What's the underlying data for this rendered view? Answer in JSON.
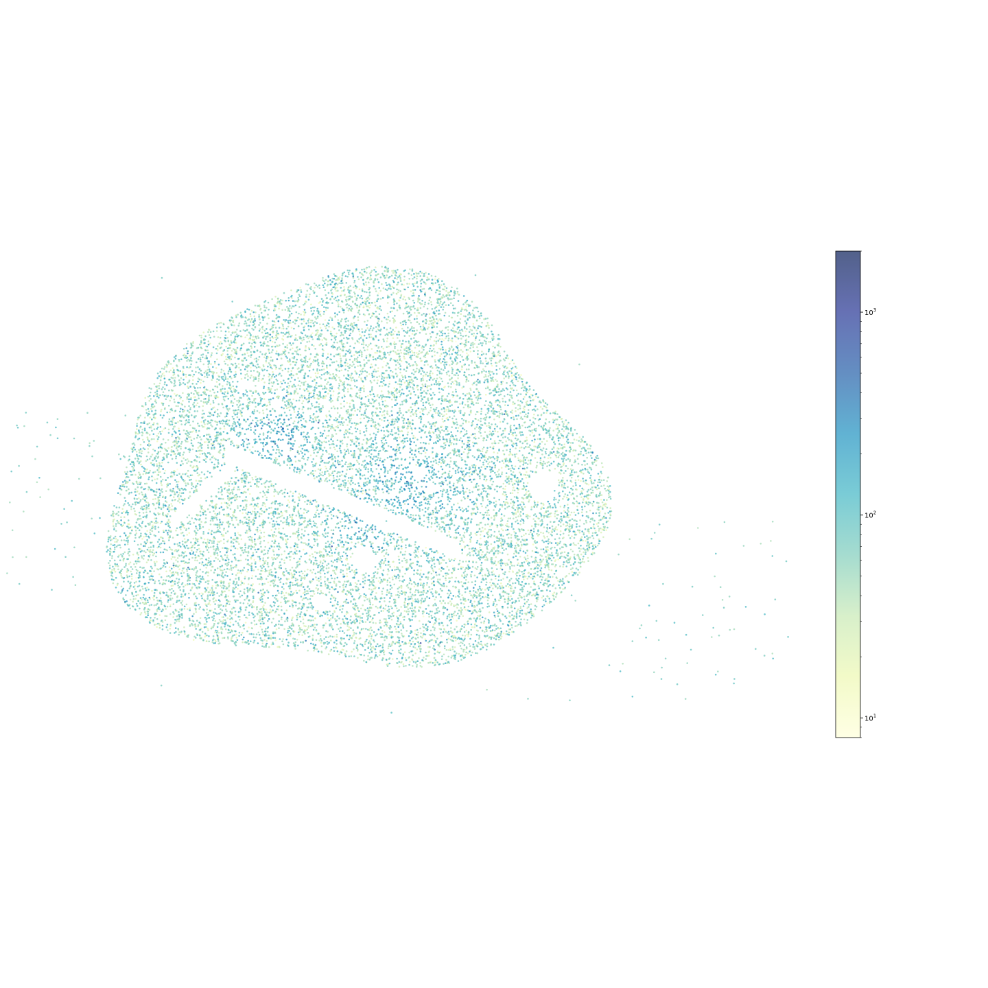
{
  "chart_data": {
    "type": "scatter",
    "title": "",
    "xlabel": "",
    "ylabel": "",
    "axes_visible": false,
    "grid": false,
    "legend": "none",
    "marker": "dot",
    "point_alpha": 0.7,
    "approx_point_count": 20000,
    "color_scale": {
      "colormap": "YlGnBu",
      "scale": "log",
      "range": [
        8,
        2000
      ],
      "stops": [
        "#ffffd9",
        "#edf8b1",
        "#c7e9b4",
        "#7fcdbb",
        "#41b6c4",
        "#1d91c0",
        "#225ea8",
        "#253494",
        "#081d58"
      ]
    },
    "colorbar": {
      "position": "right",
      "ticks": [
        {
          "base": "10",
          "exp": "1",
          "value": 10
        },
        {
          "base": "10",
          "exp": "2",
          "value": 100
        },
        {
          "base": "10",
          "exp": "3",
          "value": 1000
        }
      ]
    }
  }
}
